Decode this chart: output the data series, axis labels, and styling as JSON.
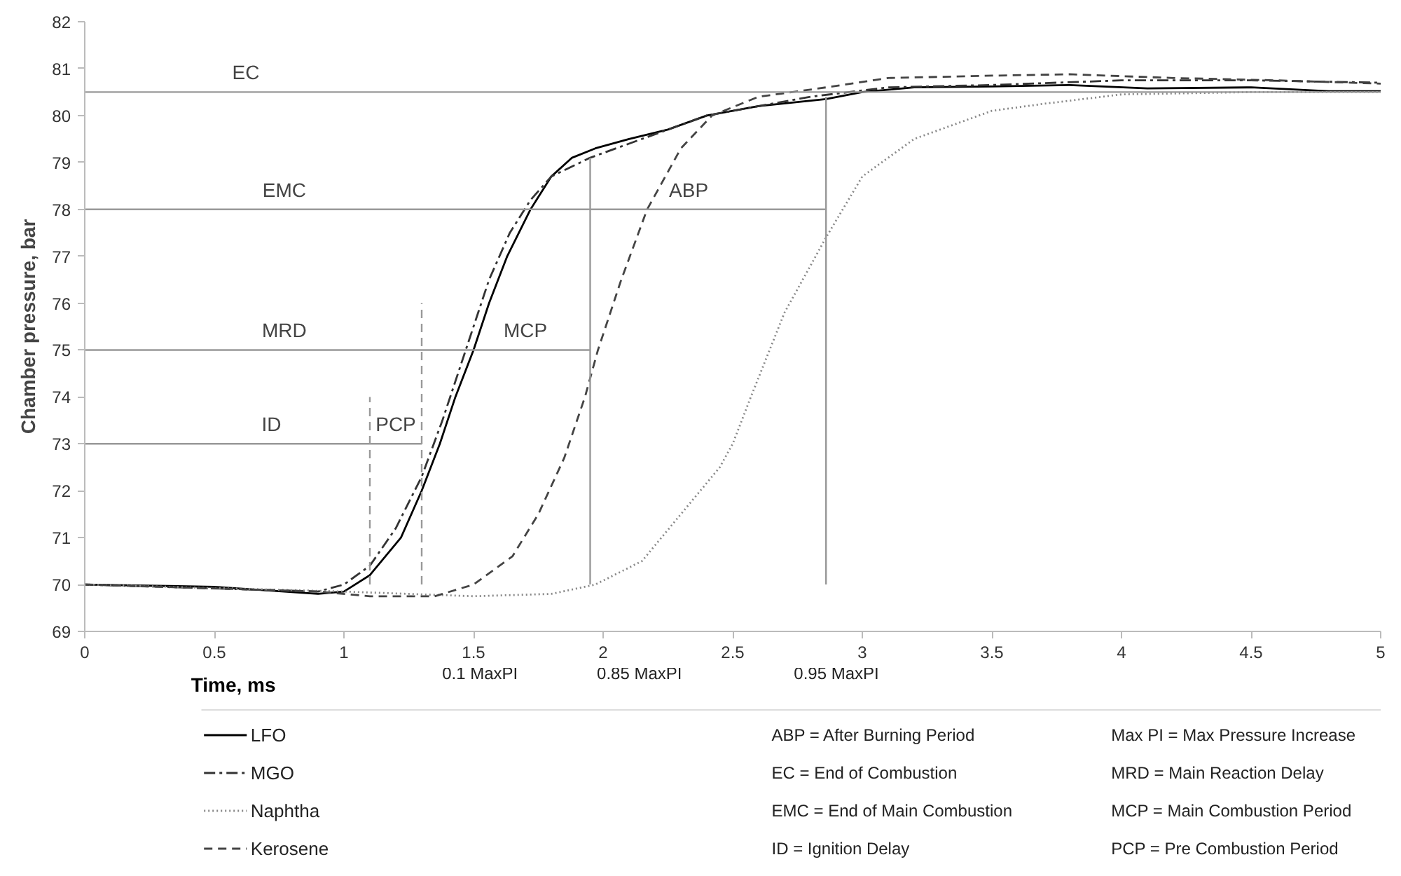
{
  "chart_data": {
    "type": "line",
    "xlabel": "Time, ms",
    "ylabel": "Chamber pressure, bar",
    "xlim": [
      0,
      5
    ],
    "xticks": [
      0,
      0.5,
      1,
      1.5,
      2,
      2.5,
      3,
      3.5,
      4,
      4.5,
      5
    ],
    "ylim": [
      69,
      82
    ],
    "yticks": [
      69,
      70,
      71,
      72,
      73,
      74,
      75,
      76,
      77,
      78,
      79,
      80,
      81,
      82
    ],
    "grid": false,
    "legend": "bottom left",
    "marker": "none",
    "series": [
      {
        "name": "LFO",
        "color": "#000000",
        "line_style": "solid",
        "x": [
          0,
          0.5,
          0.9,
          1.0,
          1.1,
          1.22,
          1.3,
          1.37,
          1.43,
          1.5,
          1.56,
          1.63,
          1.72,
          1.8,
          1.88,
          1.97,
          2.1,
          2.25,
          2.4,
          2.6,
          2.86,
          3.0,
          3.2,
          3.5,
          3.8,
          4.1,
          4.5,
          4.8,
          5
        ],
        "values": [
          70,
          69.95,
          69.8,
          69.85,
          70.2,
          71,
          72,
          73,
          74,
          75,
          76,
          77,
          78,
          78.7,
          79.1,
          79.3,
          79.5,
          79.7,
          80,
          80.2,
          80.35,
          80.5,
          80.6,
          80.62,
          80.65,
          80.58,
          80.6,
          80.52,
          80.52
        ]
      },
      {
        "name": "MGO",
        "color": "#333333",
        "line_style": "dashdot",
        "x": [
          0,
          0.9,
          1.0,
          1.1,
          1.2,
          1.3,
          1.38,
          1.47,
          1.56,
          1.64,
          1.72,
          1.8,
          1.95,
          2.15,
          2.4,
          2.8,
          3.1,
          3.5,
          4,
          4.5,
          5
        ],
        "values": [
          70,
          69.85,
          70,
          70.4,
          71.2,
          72.3,
          73.5,
          75,
          76.5,
          77.5,
          78.2,
          78.7,
          79.1,
          79.5,
          80,
          80.4,
          80.6,
          80.65,
          80.75,
          80.75,
          80.7
        ]
      },
      {
        "name": "Naphtha",
        "color": "#888888",
        "line_style": "dotted",
        "x": [
          0,
          1.0,
          1.5,
          1.8,
          1.97,
          2.15,
          2.3,
          2.45,
          2.5,
          2.57,
          2.7,
          2.86,
          3.0,
          3.2,
          3.5,
          3.7,
          4.0,
          4.5,
          5
        ],
        "values": [
          70,
          69.85,
          69.75,
          69.8,
          70,
          70.5,
          71.5,
          72.5,
          73,
          74,
          75.8,
          77.4,
          78.7,
          79.5,
          80.1,
          80.25,
          80.45,
          80.5,
          80.5
        ]
      },
      {
        "name": "Kerosene",
        "color": "#444444",
        "line_style": "dashed",
        "x": [
          0,
          0.9,
          1.1,
          1.35,
          1.5,
          1.65,
          1.75,
          1.85,
          1.93,
          1.98,
          2.07,
          2.17,
          2.3,
          2.42,
          2.6,
          2.86,
          3.1,
          3.5,
          3.8,
          4.2,
          4.6,
          5
        ],
        "values": [
          70,
          69.85,
          69.75,
          69.75,
          70,
          70.6,
          71.5,
          72.7,
          74,
          75,
          76.5,
          78,
          79.3,
          80,
          80.4,
          80.6,
          80.8,
          80.85,
          80.88,
          80.8,
          80.75,
          80.68
        ]
      },
      {
        "color": "#999999",
        "line_style": "solid",
        "x": [
          0,
          1.1,
          1.3
        ],
        "values": [
          73,
          73,
          73
        ]
      },
      {
        "color": "#999999",
        "line_style": "solid",
        "x": [
          0,
          1.3,
          1.95
        ],
        "values": [
          75,
          75,
          75
        ]
      },
      {
        "color": "#999999",
        "line_style": "solid",
        "x": [
          0,
          1.95,
          2.86
        ],
        "values": [
          78,
          78,
          78
        ]
      },
      {
        "color": "#999999",
        "line_style": "dashed",
        "x": [
          1.1,
          1.1
        ],
        "values": [
          70,
          74
        ]
      },
      {
        "color": "#999999",
        "line_style": "dashed",
        "x": [
          1.3,
          1.3
        ],
        "values": [
          70,
          76
        ]
      },
      {
        "color": "#999999",
        "line_style": "solid",
        "x": [
          1.95,
          1.95
        ],
        "values": [
          70,
          79.1
        ]
      },
      {
        "color": "#999999",
        "line_style": "solid",
        "x": [
          2.86,
          2.86
        ],
        "values": [
          70,
          80.4
        ]
      }
    ],
    "ref_lines": [
      {
        "axis": "y",
        "value": 80.5,
        "label": "EC",
        "color": "#999999"
      }
    ],
    "annotations": [
      {
        "text": "ID",
        "x": 0.72,
        "y": 73
      },
      {
        "text": "PCP",
        "x": 1.2,
        "y": 73
      },
      {
        "text": "MRD",
        "x": 0.77,
        "y": 75
      },
      {
        "text": "MCP",
        "x": 1.7,
        "y": 75
      },
      {
        "text": "EMC",
        "x": 0.77,
        "y": 78
      },
      {
        "text": "ABP",
        "x": 2.33,
        "y": 78
      },
      "0.1 MaxPI",
      "0.85 MaxPI",
      "0.95 MaxPI",
      "ABP = After Burning Period",
      "EC = End of Combustion",
      "EMC = End of Main Combustion",
      "ID = Ignition Delay",
      "Max PI = Max Pressure Increase",
      "MRD = Main Reaction Delay",
      "MCP = Main Combustion Period",
      "PCP = Pre Combustion Period"
    ]
  }
}
